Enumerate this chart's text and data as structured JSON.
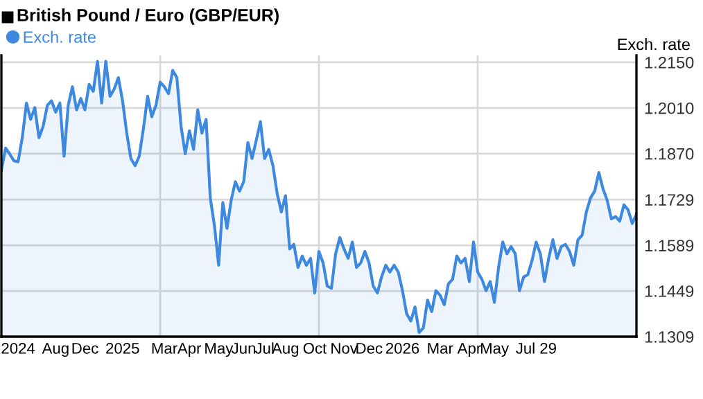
{
  "chart_data": {
    "type": "area",
    "title": "British Pound / Euro (GBP/EUR)",
    "ylabel": "Exch. rate",
    "legend": "top left",
    "grid": "y",
    "categories": [
      null,
      null,
      null,
      null,
      "2024",
      null,
      null,
      null,
      null,
      null,
      null,
      null,
      null,
      "Aug",
      null,
      null,
      null,
      null,
      null,
      null,
      "Dec",
      null,
      null,
      null,
      null,
      null,
      null,
      null,
      null,
      "2025",
      null,
      null,
      null,
      null,
      null,
      null,
      null,
      null,
      null,
      "Mar",
      null,
      null,
      null,
      null,
      null,
      "Apr",
      null,
      null,
      null,
      null,
      null,
      null,
      "May",
      null,
      null,
      null,
      null,
      null,
      "Jun",
      null,
      null,
      null,
      null,
      "Jul",
      null,
      null,
      null,
      null,
      "Aug",
      null,
      null,
      null,
      null,
      null,
      null,
      "Oct",
      null,
      null,
      null,
      null,
      null,
      null,
      "Nov",
      null,
      null,
      null,
      null,
      null,
      "Dec",
      null,
      null,
      null,
      null,
      null,
      null,
      null,
      "2026",
      null,
      null,
      null,
      null,
      null,
      null,
      null,
      null,
      "Mar",
      null,
      null,
      null,
      null,
      null,
      null,
      "Apr",
      null,
      null,
      null,
      null,
      null,
      "May",
      null,
      null,
      null,
      null,
      null,
      null,
      null,
      null,
      null,
      "Jul 29",
      null,
      null,
      null,
      null,
      null,
      null,
      null,
      null,
      null,
      null,
      null,
      null,
      null,
      null,
      null,
      null,
      null,
      null,
      null,
      null,
      null,
      null,
      null,
      null
    ],
    "ylim": [
      1.1309,
      1.2171
    ],
    "yticks": [
      {
        "value": 1.1309,
        "label": "1.1309"
      },
      {
        "value": 1.1449,
        "label": "1.1449"
      },
      {
        "value": 1.1589,
        "label": "1.1589"
      },
      {
        "value": 1.1729,
        "label": "1.1729"
      },
      {
        "value": 1.187,
        "label": "1.1870"
      },
      {
        "value": 1.201,
        "label": "1.2010"
      },
      {
        "value": 1.215,
        "label": "1.2150"
      }
    ],
    "series": [
      {
        "name": "Exch. rate",
        "color": "#3d89df",
        "values": [
          1.1819,
          1.1887,
          1.1869,
          1.1848,
          1.1845,
          1.1919,
          1.2025,
          1.1975,
          1.2011,
          1.1919,
          1.1954,
          1.2018,
          1.2032,
          1.1997,
          1.2025,
          1.1862,
          1.2018,
          1.2075,
          1.2004,
          1.2039,
          1.2004,
          1.2082,
          1.2061,
          1.2153,
          1.2025,
          1.2153,
          1.2046,
          1.2068,
          1.2103,
          1.2032,
          1.1933,
          1.1855,
          1.1833,
          1.1862,
          1.1947,
          1.2046,
          1.1983,
          1.2018,
          1.2089,
          1.2075,
          1.2054,
          1.2125,
          1.2103,
          1.1954,
          1.1869,
          1.194,
          1.1883,
          1.2004,
          1.1933,
          1.1975,
          1.1734,
          1.1649,
          1.1528,
          1.172,
          1.1641,
          1.1727,
          1.1784,
          1.1755,
          1.1784,
          1.1904,
          1.1855,
          1.1911,
          1.1968,
          1.1855,
          1.1883,
          1.1833,
          1.1748,
          1.1691,
          1.1741,
          1.1578,
          1.1592,
          1.1521,
          1.1556,
          1.1528,
          1.1549,
          1.1443,
          1.157,
          1.1535,
          1.1464,
          1.1457,
          1.1563,
          1.1613,
          1.1578,
          1.1549,
          1.1599,
          1.1521,
          1.1535,
          1.157,
          1.1535,
          1.1464,
          1.1443,
          1.1492,
          1.1528,
          1.1507,
          1.1528,
          1.1507,
          1.145,
          1.1379,
          1.1357,
          1.14,
          1.1322,
          1.1336,
          1.1421,
          1.1386,
          1.145,
          1.1436,
          1.1407,
          1.1471,
          1.1485,
          1.1556,
          1.1535,
          1.1549,
          1.1478,
          1.1599,
          1.1507,
          1.1485,
          1.145,
          1.1478,
          1.1414,
          1.1521,
          1.1599,
          1.1563,
          1.1585,
          1.1563,
          1.145,
          1.1492,
          1.1499,
          1.1542,
          1.1599,
          1.1563,
          1.1478,
          1.1549,
          1.1606,
          1.1549,
          1.1585,
          1.1592,
          1.157,
          1.1528,
          1.1606,
          1.162,
          1.1691,
          1.1734,
          1.1755,
          1.1812,
          1.1762,
          1.1727,
          1.167,
          1.1677,
          1.1663,
          1.1713,
          1.1698,
          1.1656,
          1.1684
        ]
      }
    ]
  }
}
